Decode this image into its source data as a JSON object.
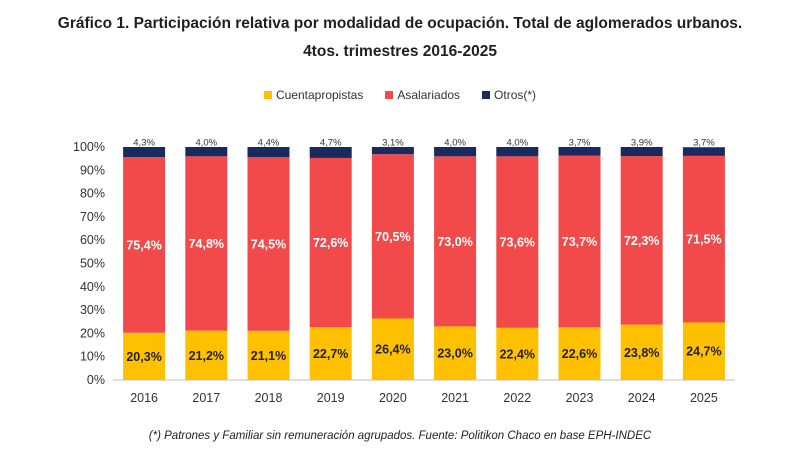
{
  "chart_data": {
    "type": "bar",
    "stacked": true,
    "title": "Gráfico 1. Participación relativa por modalidad de ocupación. Total de aglomerados urbanos.",
    "subtitle": "4tos. trimestres 2016-2025",
    "categories": [
      "2016",
      "2017",
      "2018",
      "2019",
      "2020",
      "2021",
      "2022",
      "2023",
      "2024",
      "2025"
    ],
    "series": [
      {
        "name": "Cuentapropistas",
        "color": "#FFC000",
        "values": [
          20.3,
          21.2,
          21.1,
          22.7,
          26.4,
          23.0,
          22.4,
          22.6,
          23.8,
          24.7
        ],
        "labels": [
          "20,3%",
          "21,2%",
          "21,1%",
          "22,7%",
          "26,4%",
          "23,0%",
          "22,4%",
          "22,6%",
          "23,8%",
          "24,7%"
        ],
        "label_color": "#222222"
      },
      {
        "name": "Asalariados",
        "color": "#F24A4A",
        "values": [
          75.4,
          74.8,
          74.5,
          72.6,
          70.5,
          73.0,
          73.6,
          73.7,
          72.3,
          71.5
        ],
        "labels": [
          "75,4%",
          "74,8%",
          "74,5%",
          "72,6%",
          "70,5%",
          "73,0%",
          "73,6%",
          "73,7%",
          "72,3%",
          "71,5%"
        ],
        "label_color": "#FFFFFF"
      },
      {
        "name": "Otros(*)",
        "color": "#1B2A5E",
        "values": [
          4.3,
          4.0,
          4.4,
          4.7,
          3.1,
          4.0,
          4.0,
          3.7,
          3.9,
          3.7
        ],
        "labels": [
          "4,3%",
          "4,0%",
          "4,4%",
          "4,7%",
          "3,1%",
          "4,0%",
          "4,0%",
          "3,7%",
          "3,9%",
          "3,7%"
        ],
        "label_color": "#333333"
      }
    ],
    "y_ticks": [
      "0%",
      "10%",
      "20%",
      "30%",
      "40%",
      "50%",
      "60%",
      "70%",
      "80%",
      "90%",
      "100%"
    ],
    "ylim": [
      0,
      100
    ],
    "legend_position": "top",
    "grid": false
  },
  "footnote": "(*) Patrones y Familiar sin remuneración agrupados. Fuente: Politikon Chaco en base EPH-INDEC"
}
